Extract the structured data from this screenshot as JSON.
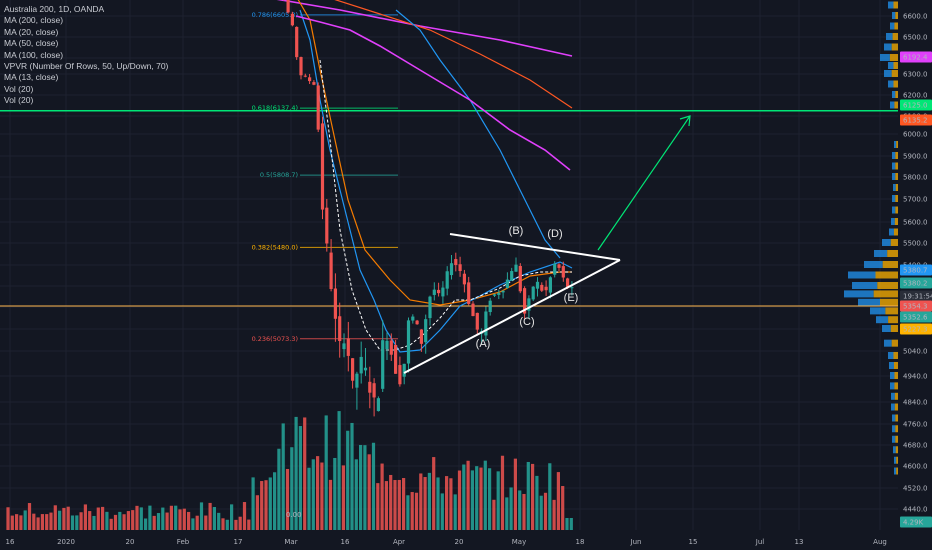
{
  "legend": {
    "title": "Australia 200, 1D, OANDA",
    "indicators": [
      "MA (200, close)",
      "MA (20, close)",
      "MA (50, close)",
      "MA (100, close)",
      "VPVR (Number Of Rows, 50, Up/Down, 70)",
      "MA (13, close)",
      "Vol (20)",
      "Vol (20)"
    ]
  },
  "colors": {
    "background": "#131722",
    "up": "#26a69a",
    "down": "#ef5350",
    "ma13": "#ffffff",
    "ma20": "#2196f3",
    "ma50": "#f57c00",
    "ma100": "#ff5722",
    "ma200": "#e040fb",
    "projection": "#00e676",
    "support_line": "#00e676",
    "current_line": "#ffb74d",
    "triangle": "#ffffff",
    "vpvr_up": "#2196f3",
    "vpvr_down": "#ffb300"
  },
  "chart_data": {
    "type": "candlestick",
    "symbol": "Australia 200",
    "interval": "1D",
    "exchange": "OANDA",
    "x_axis": {
      "tick_labels": [
        "16",
        "2020",
        "20",
        "Feb",
        "17",
        "Mar",
        "16",
        "Apr",
        "20",
        "May",
        "18",
        "Jun",
        "15",
        "Jul",
        "13",
        "Aug"
      ]
    },
    "y_axis": {
      "ylim": [
        4400,
        6720
      ],
      "tick_labels": [
        "6600.0",
        "6500.0",
        "6400.0",
        "6300.0",
        "6200.0",
        "6100.0",
        "6000.0",
        "5900.0",
        "5800.0",
        "5700.0",
        "5600.0",
        "5500.0",
        "5400.0",
        "5300.0",
        "5200.0",
        "5100.0",
        "5040.0",
        "4940.0",
        "4840.0",
        "4760.0",
        "4680.0",
        "4600.0",
        "4520.0",
        "4440.0"
      ],
      "tick_values": [
        6600,
        6500,
        6400,
        6300,
        6200,
        6100,
        6000,
        5900,
        5800,
        5700,
        5600,
        5500,
        5400,
        5300,
        5200,
        5100,
        5040,
        4940,
        4840,
        4760,
        4680,
        4600,
        4520,
        4440
      ]
    },
    "price_tags": [
      {
        "label": "6192.4",
        "value": 6192.4,
        "color": "#e040fb"
      },
      {
        "label": "6125.0",
        "value": 6125.0,
        "color": "#00e676"
      },
      {
        "label": "6135.2",
        "value": 6135.2,
        "color": "#ff5722"
      },
      {
        "label": "5380.7",
        "value": 5380.7,
        "color": "#2196f3"
      },
      {
        "label": "5380.2",
        "value": 5380.2,
        "color": "#26a69a"
      },
      {
        "label": "19:31:54",
        "value": 5362,
        "color": "#131722"
      },
      {
        "label": "5354.3",
        "value": 5354.3,
        "color": "#ef5350"
      },
      {
        "label": "5352.6",
        "value": 5352.6,
        "color": "#26a69a"
      },
      {
        "label": "5227.3",
        "value": 5227.3,
        "color": "#ffb300"
      },
      {
        "label": "4.29K",
        "value": 4410,
        "color": "#26a69a"
      }
    ],
    "fib_levels": [
      {
        "label": "0.786(6605.3)",
        "value": 6605.3,
        "color": "#2196f3"
      },
      {
        "label": "0.618(6137.4)",
        "value": 6137.4,
        "color": "#00e676"
      },
      {
        "label": "0.5(5808.7)",
        "value": 5808.7,
        "color": "#26a69a"
      },
      {
        "label": "0.382(5480.0)",
        "value": 5480.0,
        "color": "#ffb300"
      },
      {
        "label": "0.236(5073.3)",
        "value": 5073.3,
        "color": "#ef5350"
      }
    ],
    "wave_labels": [
      {
        "label": "(A)",
        "date_index": 0
      },
      {
        "label": "(B)",
        "date_index": 1
      },
      {
        "label": "(C)",
        "date_index": 2
      },
      {
        "label": "(D)",
        "date_index": 3
      },
      {
        "label": "(E)",
        "date_index": 4
      }
    ],
    "horizontal_lines": [
      {
        "name": "resistance",
        "value": 6125.0
      },
      {
        "name": "current",
        "value": 5240.0
      }
    ],
    "volume_label": "0.00"
  }
}
